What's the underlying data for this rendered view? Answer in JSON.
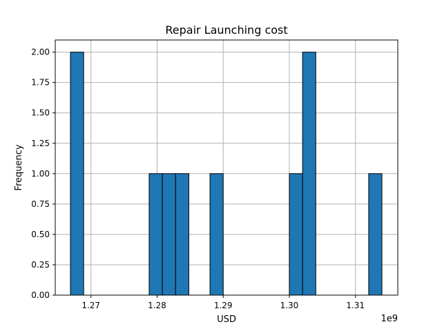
{
  "chart_data": {
    "type": "bar",
    "title": "Repair Launching cost",
    "xlabel": "USD",
    "ylabel": "Frequency",
    "x_offset_label": "1e9",
    "xlim": [
      1.2646,
      1.3164
    ],
    "ylim": [
      0,
      2.1
    ],
    "x_ticks": [
      1.27,
      1.28,
      1.29,
      1.3,
      1.31
    ],
    "x_tick_labels": [
      "1.27",
      "1.28",
      "1.29",
      "1.30",
      "1.31"
    ],
    "y_ticks": [
      0.0,
      0.25,
      0.5,
      0.75,
      1.0,
      1.25,
      1.5,
      1.75,
      2.0
    ],
    "y_tick_labels": [
      "0.00",
      "0.25",
      "0.50",
      "0.75",
      "1.00",
      "1.25",
      "1.50",
      "1.75",
      "2.00"
    ],
    "grid": true,
    "bins": [
      {
        "start": 1.2669,
        "end": 1.2689,
        "count": 2
      },
      {
        "start": 1.2788,
        "end": 1.2808,
        "count": 1
      },
      {
        "start": 1.2808,
        "end": 1.2828,
        "count": 1
      },
      {
        "start": 1.2828,
        "end": 1.2848,
        "count": 1
      },
      {
        "start": 1.288,
        "end": 1.29,
        "count": 1
      },
      {
        "start": 1.3,
        "end": 1.302,
        "count": 1
      },
      {
        "start": 1.302,
        "end": 1.304,
        "count": 2
      },
      {
        "start": 1.312,
        "end": 1.314,
        "count": 1
      }
    ]
  }
}
